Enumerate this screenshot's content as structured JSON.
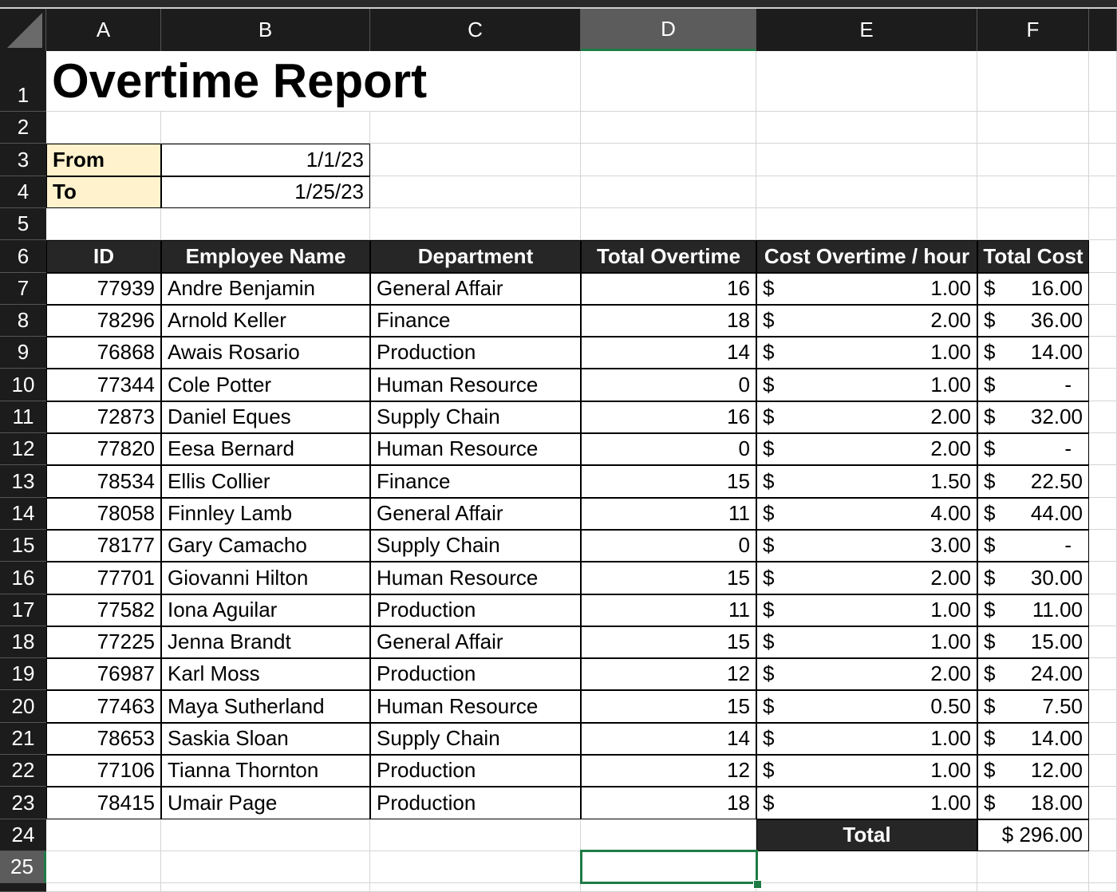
{
  "columns": [
    "A",
    "B",
    "C",
    "D",
    "E",
    "F"
  ],
  "selected_cell": "D25",
  "title": "Overtime Report",
  "from_label": "From",
  "from_value": "1/1/23",
  "to_label": "To",
  "to_value": "1/25/23",
  "table_headers": [
    "ID",
    "Employee Name",
    "Department",
    "Total Overtime",
    "Cost Overtime / hour",
    "Total Cost"
  ],
  "rows": [
    {
      "id": "77939",
      "name": "Andre Benjamin",
      "dept": "General Affair",
      "ot": "16",
      "rate": "1.00",
      "cost": "16.00"
    },
    {
      "id": "78296",
      "name": "Arnold Keller",
      "dept": "Finance",
      "ot": "18",
      "rate": "2.00",
      "cost": "36.00"
    },
    {
      "id": "76868",
      "name": "Awais Rosario",
      "dept": "Production",
      "ot": "14",
      "rate": "1.00",
      "cost": "14.00"
    },
    {
      "id": "77344",
      "name": "Cole Potter",
      "dept": "Human Resource",
      "ot": "0",
      "rate": "1.00",
      "cost": "-"
    },
    {
      "id": "72873",
      "name": "Daniel Eques",
      "dept": "Supply Chain",
      "ot": "16",
      "rate": "2.00",
      "cost": "32.00"
    },
    {
      "id": "77820",
      "name": "Eesa Bernard",
      "dept": "Human Resource",
      "ot": "0",
      "rate": "2.00",
      "cost": "-"
    },
    {
      "id": "78534",
      "name": "Ellis Collier",
      "dept": "Finance",
      "ot": "15",
      "rate": "1.50",
      "cost": "22.50"
    },
    {
      "id": "78058",
      "name": "Finnley Lamb",
      "dept": "General Affair",
      "ot": "11",
      "rate": "4.00",
      "cost": "44.00"
    },
    {
      "id": "78177",
      "name": "Gary Camacho",
      "dept": "Supply Chain",
      "ot": "0",
      "rate": "3.00",
      "cost": "-"
    },
    {
      "id": "77701",
      "name": "Giovanni Hilton",
      "dept": "Human Resource",
      "ot": "15",
      "rate": "2.00",
      "cost": "30.00"
    },
    {
      "id": "77582",
      "name": "Iona Aguilar",
      "dept": "Production",
      "ot": "11",
      "rate": "1.00",
      "cost": "11.00"
    },
    {
      "id": "77225",
      "name": "Jenna Brandt",
      "dept": "General Affair",
      "ot": "15",
      "rate": "1.00",
      "cost": "15.00"
    },
    {
      "id": "76987",
      "name": "Karl Moss",
      "dept": "Production",
      "ot": "12",
      "rate": "2.00",
      "cost": "24.00"
    },
    {
      "id": "77463",
      "name": "Maya Sutherland",
      "dept": "Human Resource",
      "ot": "15",
      "rate": "0.50",
      "cost": "7.50"
    },
    {
      "id": "78653",
      "name": "Saskia Sloan",
      "dept": "Supply Chain",
      "ot": "14",
      "rate": "1.00",
      "cost": "14.00"
    },
    {
      "id": "77106",
      "name": "Tianna Thornton",
      "dept": "Production",
      "ot": "12",
      "rate": "1.00",
      "cost": "12.00"
    },
    {
      "id": "78415",
      "name": "Umair Page",
      "dept": "Production",
      "ot": "18",
      "rate": "1.00",
      "cost": "18.00"
    }
  ],
  "currency_symbol": "$",
  "total_label": "Total",
  "total_value": "$ 296.00",
  "colors": {
    "header_bg": "#1c1c1c",
    "table_header_bg": "#262626",
    "input_fill": "#fff2cc",
    "selection": "#1e7b45"
  }
}
